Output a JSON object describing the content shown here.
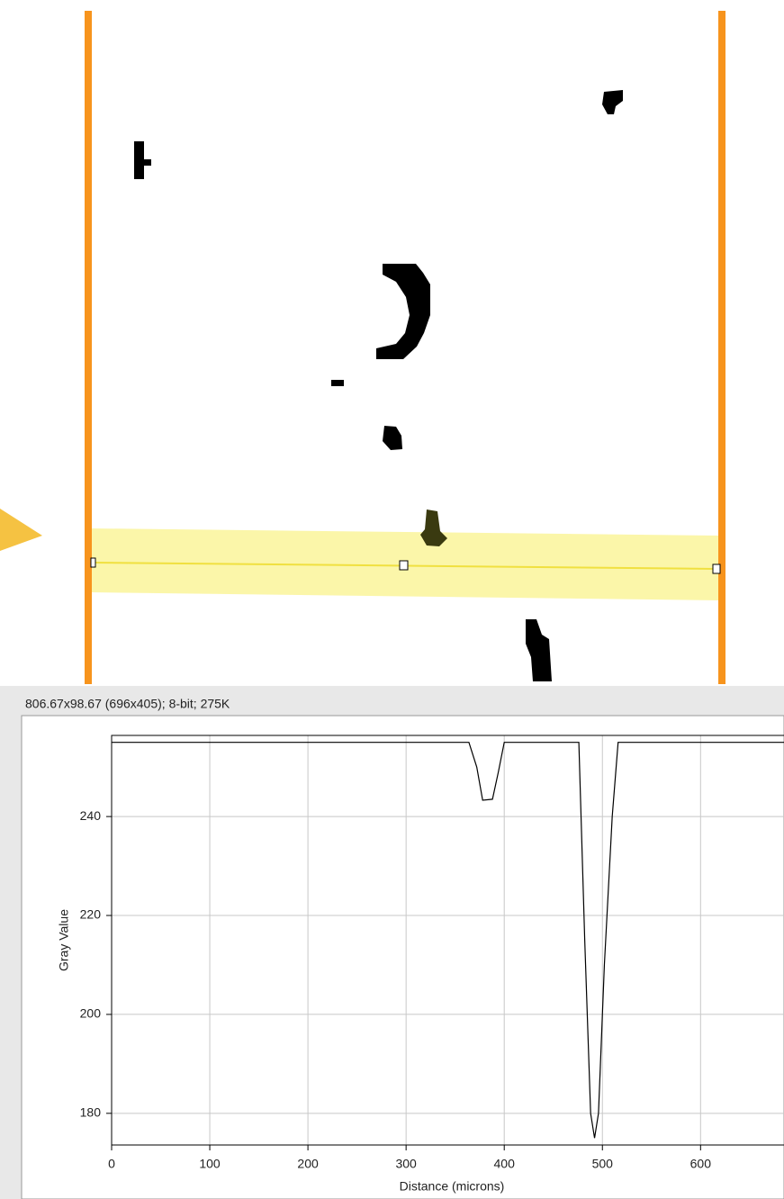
{
  "info_bar": "806.67x98.67  (696x405); 8-bit; 275K",
  "chart_data": {
    "type": "line",
    "xlabel": "Distance (microns)",
    "ylabel": "Gray Value",
    "x": [
      0,
      364,
      372,
      378,
      388,
      394,
      400,
      476,
      482,
      488,
      492,
      496,
      502,
      510,
      516,
      685
    ],
    "series": [
      {
        "color": "#000000",
        "values": [
          255,
          255,
          250,
          243.3,
          243.5,
          249,
          255,
          255,
          215,
          180,
          175,
          180,
          210,
          240,
          255,
          255
        ]
      }
    ],
    "xlim": [
      0,
      685
    ],
    "ylim": [
      173.6,
      256.4
    ],
    "xticks": [
      0,
      100,
      200,
      300,
      400,
      500,
      600
    ],
    "yticks": [
      180,
      200,
      220,
      240
    ],
    "grid": true
  }
}
